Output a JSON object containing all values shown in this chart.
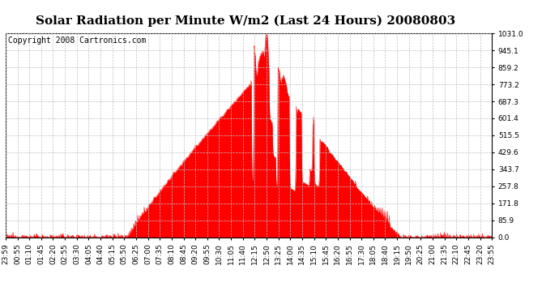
{
  "title": "Solar Radiation per Minute W/m2 (Last 24 Hours) 20080803",
  "copyright_text": "Copyright 2008 Cartronics.com",
  "y_min": 0.0,
  "y_max": 1031.0,
  "y_ticks": [
    0.0,
    85.9,
    171.8,
    257.8,
    343.7,
    429.6,
    515.5,
    601.4,
    687.3,
    773.2,
    859.2,
    945.1,
    1031.0
  ],
  "x_labels": [
    "23:59",
    "00:55",
    "01:10",
    "01:45",
    "02:20",
    "02:55",
    "03:30",
    "04:05",
    "04:40",
    "05:15",
    "05:50",
    "06:25",
    "07:00",
    "07:35",
    "08:10",
    "08:45",
    "09:20",
    "09:55",
    "10:30",
    "11:05",
    "11:40",
    "12:15",
    "12:50",
    "13:25",
    "14:00",
    "14:35",
    "15:10",
    "15:45",
    "16:20",
    "16:55",
    "17:30",
    "18:05",
    "18:40",
    "19:15",
    "19:50",
    "20:25",
    "21:00",
    "21:35",
    "22:10",
    "22:45",
    "23:20",
    "23:55"
  ],
  "fill_color": "#FF0000",
  "line_color": "#FF0000",
  "dashed_line_color": "#FF0000",
  "grid_color": "#C0C0C0",
  "background_color": "#FFFFFF",
  "title_fontsize": 11,
  "copyright_fontsize": 7,
  "tick_fontsize": 6.5,
  "num_points": 1440
}
